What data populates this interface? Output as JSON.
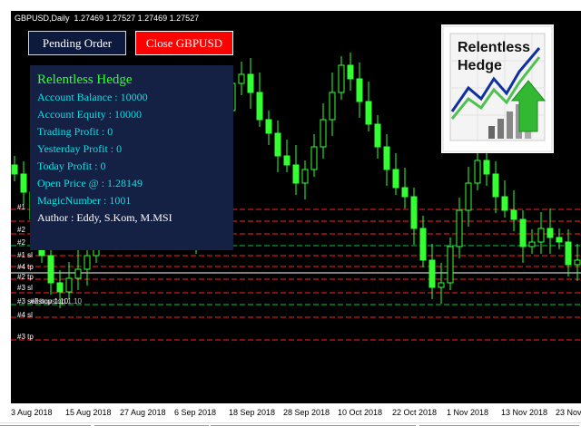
{
  "chart": {
    "symbol_line": "GBPUSD,Daily  1.27469 1.27527 1.27469 1.27527",
    "dates": [
      "3 Aug 2018",
      "15 Aug 2018",
      "27 Aug 2018",
      "6 Sep 2018",
      "18 Sep 2018",
      "28 Sep 2018",
      "10 Oct 2018",
      "22 Oct 2018",
      "1 Nov 2018",
      "13 Nov 2018",
      "23 Nov"
    ],
    "colors": {
      "background": "#000000",
      "candle": "#33ff33",
      "buy_level": "#00cc44",
      "sell_level": "#ff2222",
      "white_level": "#ffffff"
    }
  },
  "buttons": {
    "pending": "Pending Order",
    "close": "Close GBPUSD"
  },
  "panel": {
    "title": "Relentless Hedge",
    "lines": [
      "Account Balance : 10000",
      "Account Equity : 10000",
      "Trading Profit : 0",
      "Yesterday Profit : 0",
      "Today Profit : 0",
      "Open Price @ : 1.28149",
      "MagicNumber : 1001",
      "Author : Eddy, S.Kom, M.MSI"
    ]
  },
  "logo": {
    "line1": "Relentless",
    "line2": "Hedge"
  },
  "levels": {
    "labels": [
      "#1",
      "#2",
      "#2",
      "#1 sl",
      "#4 tp",
      "#2 tp",
      "#3 sl",
      "#3 sellstop 1.10",
      "#4 sl",
      "#3 tp"
    ],
    "overlay_label": "#3 buystop 1.10"
  }
}
